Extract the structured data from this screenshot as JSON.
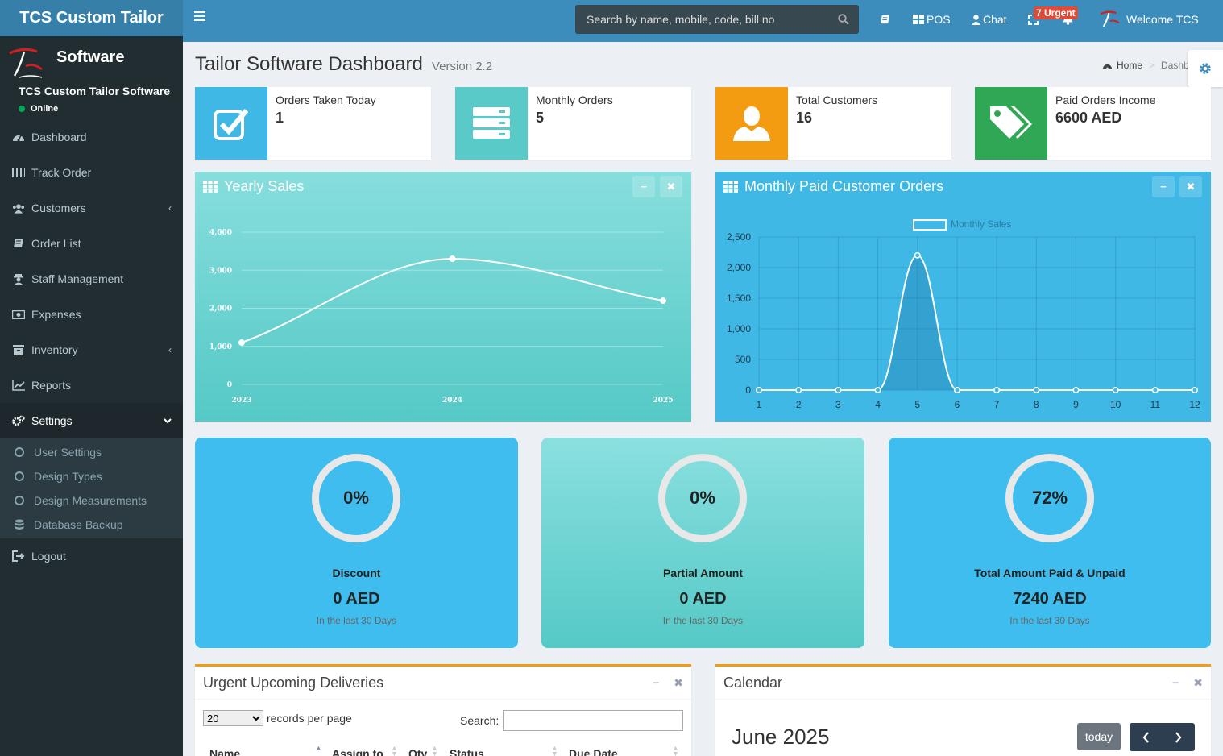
{
  "app": {
    "brand": "TCS Custom Tailor",
    "software": "Software",
    "user_name": "TCS Custom Tailor Software",
    "user_status": "Online"
  },
  "header": {
    "search_placeholder": "Search by name, mobile, code, bill no",
    "pos_label": "POS",
    "chat_label": "Chat",
    "urgent_badge": "7 Urgent",
    "welcome": "Welcome TCS"
  },
  "sidebar": {
    "items": [
      {
        "label": "Dashboard",
        "icon": "dashboard-icon"
      },
      {
        "label": "Track Order",
        "icon": "barcode-icon"
      },
      {
        "label": "Customers",
        "icon": "users-icon"
      },
      {
        "label": "Order List",
        "icon": "book-icon"
      },
      {
        "label": "Staff Management",
        "icon": "user-secret-icon"
      },
      {
        "label": "Expenses",
        "icon": "money-icon"
      },
      {
        "label": "Inventory",
        "icon": "archive-icon"
      },
      {
        "label": "Reports",
        "icon": "line-chart-icon"
      },
      {
        "label": "Settings",
        "icon": "cogs-icon"
      }
    ],
    "settings_sub": [
      "User Settings",
      "Design Types",
      "Design Measurements",
      "Database Backup"
    ],
    "logout": "Logout"
  },
  "page": {
    "title": "Tailor Software Dashboard",
    "version": "Version 2.2",
    "breadcrumb_home": "Home",
    "breadcrumb_current": "Dashb"
  },
  "info_boxes": [
    {
      "label": "Orders Taken Today",
      "value": "1",
      "color": "#3fb8e6"
    },
    {
      "label": "Monthly Orders",
      "value": "5",
      "color": "#5acac8"
    },
    {
      "label": "Total Customers",
      "value": "16",
      "color": "#f39c12"
    },
    {
      "label": "Paid Orders Income",
      "value": "6600 AED",
      "color": "#30a755"
    }
  ],
  "charts": {
    "yearly_title": "Yearly Sales",
    "monthly_title": "Monthly Paid Customer Orders"
  },
  "chart_data": [
    {
      "type": "line",
      "title": "Yearly Sales",
      "x": [
        "2023",
        "2024",
        "2025"
      ],
      "series": [
        {
          "values": [
            1100,
            3300,
            2200
          ]
        }
      ],
      "yticks": [
        "0",
        "1,000",
        "2,000",
        "3,000",
        "4,000"
      ],
      "ylim": [
        0,
        4000
      ],
      "grid": true
    },
    {
      "type": "area",
      "title": "Monthly Paid Customer Orders",
      "x": [
        "1",
        "2",
        "3",
        "4",
        "5",
        "6",
        "7",
        "8",
        "9",
        "10",
        "11",
        "12"
      ],
      "series": [
        {
          "name": "Monthly Sales",
          "values": [
            0,
            0,
            0,
            0,
            2200,
            0,
            0,
            0,
            0,
            0,
            0,
            0
          ]
        }
      ],
      "yticks": [
        "0",
        "500",
        "1,000",
        "1,500",
        "2,000",
        "2,500"
      ],
      "ylim": [
        0,
        2500
      ],
      "legend": "top",
      "grid": true
    }
  ],
  "stats": [
    {
      "percent": "0%",
      "label": "Discount",
      "value": "0 AED",
      "sub": "In the last 30 Days"
    },
    {
      "percent": "0%",
      "label": "Partial Amount",
      "value": "0 AED",
      "sub": "In the last 30 Days"
    },
    {
      "percent": "72%",
      "label": "Total Amount Paid & Unpaid",
      "value": "7240 AED",
      "sub": "In the last 30 Days"
    }
  ],
  "deliveries": {
    "title": "Urgent Upcoming Deliveries",
    "length_value": "20",
    "length_suffix": "records per page",
    "search_label": "Search:",
    "columns": [
      "Name",
      "Assign to",
      "Qty",
      "Status",
      "Due Date"
    ]
  },
  "calendar": {
    "title": "Calendar",
    "month": "June 2025",
    "today_label": "today"
  }
}
